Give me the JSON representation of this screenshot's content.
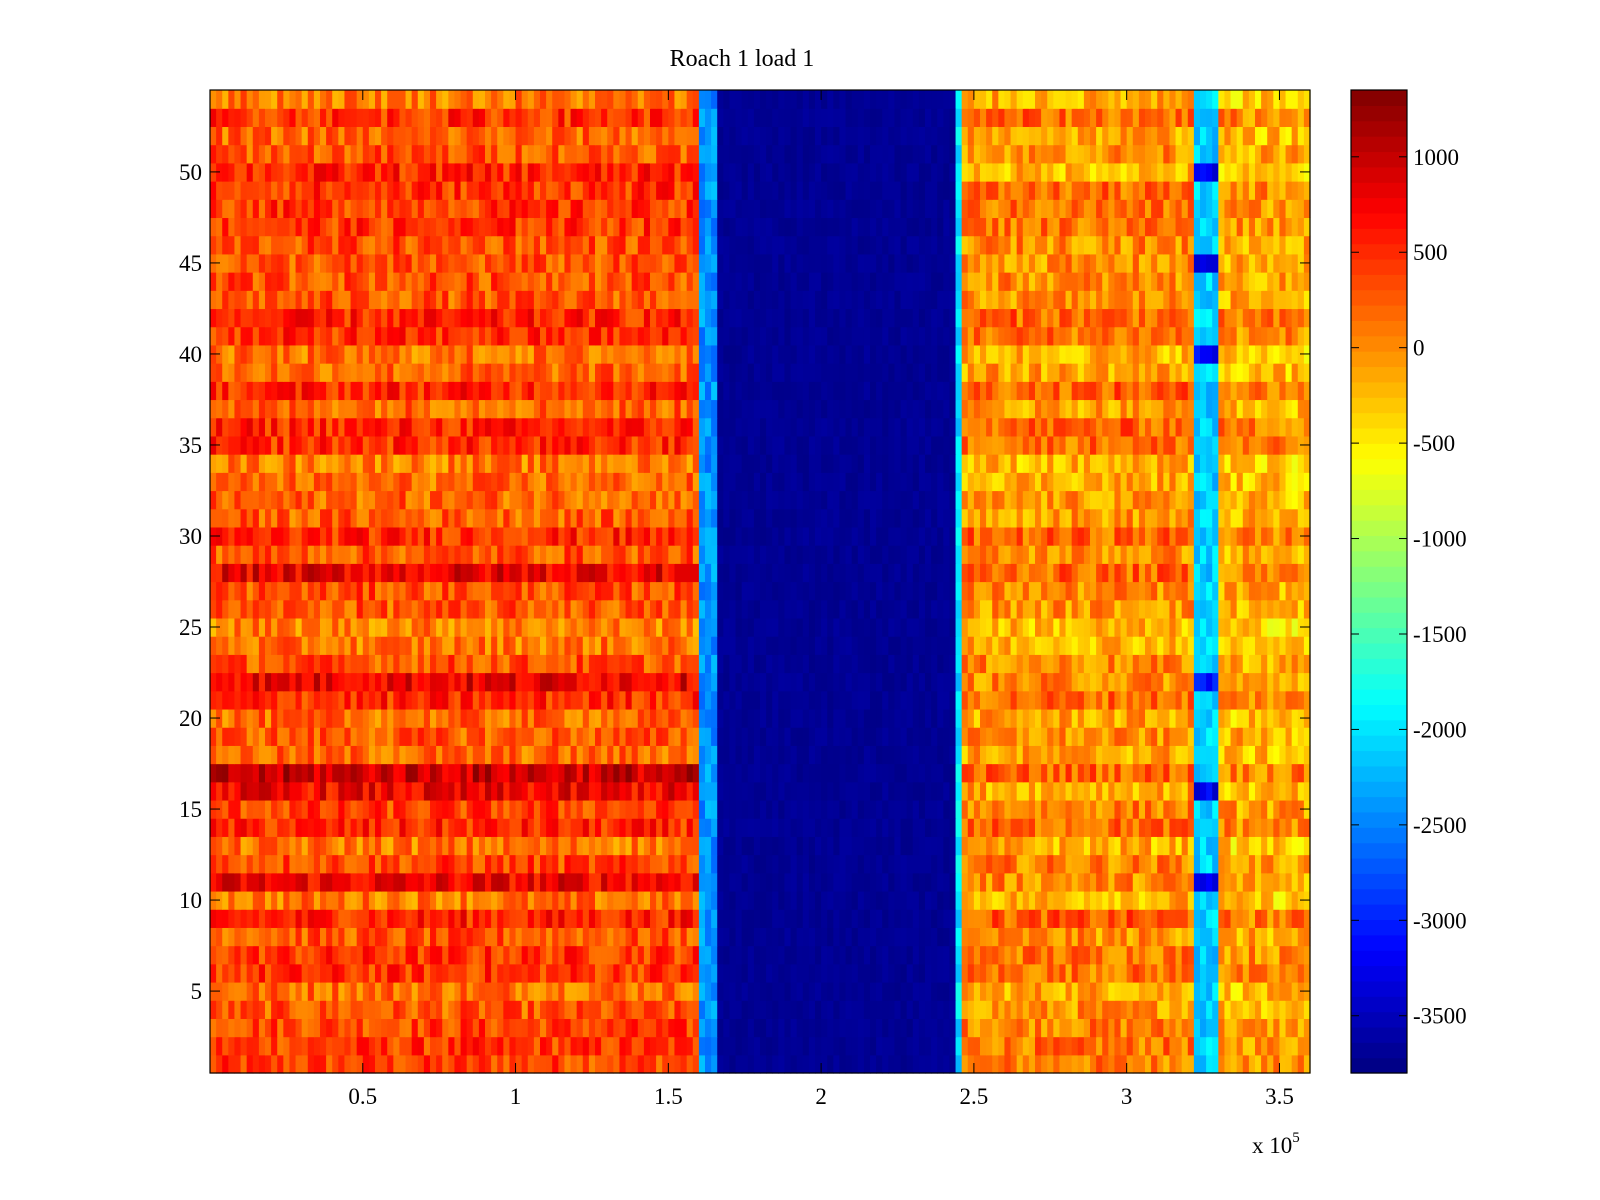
{
  "chart_data": {
    "type": "heatmap",
    "title": "Roach 1 load 1",
    "xlabel": "",
    "ylabel": "",
    "x_exponent_label": {
      "base": "x 10",
      "exponent": "5"
    },
    "xlim": [
      0,
      360000
    ],
    "ylim": [
      0.5,
      54.5
    ],
    "x_ticks": [
      {
        "value": 50000,
        "label": "0.5"
      },
      {
        "value": 100000,
        "label": "1"
      },
      {
        "value": 150000,
        "label": "1.5"
      },
      {
        "value": 200000,
        "label": "2"
      },
      {
        "value": 250000,
        "label": "2.5"
      },
      {
        "value": 300000,
        "label": "3"
      },
      {
        "value": 350000,
        "label": "3.5"
      }
    ],
    "y_ticks": [
      {
        "value": 5,
        "label": "5"
      },
      {
        "value": 10,
        "label": "10"
      },
      {
        "value": 15,
        "label": "15"
      },
      {
        "value": 20,
        "label": "20"
      },
      {
        "value": 25,
        "label": "25"
      },
      {
        "value": 30,
        "label": "30"
      },
      {
        "value": 35,
        "label": "35"
      },
      {
        "value": 40,
        "label": "40"
      },
      {
        "value": 45,
        "label": "45"
      },
      {
        "value": 50,
        "label": "50"
      }
    ],
    "colormap": "jet",
    "clim": [
      -3800,
      1350
    ],
    "colorbar_ticks": [
      {
        "value": 1000,
        "label": "1000"
      },
      {
        "value": 500,
        "label": "500"
      },
      {
        "value": 0,
        "label": "0"
      },
      {
        "value": -500,
        "label": "-500"
      },
      {
        "value": -1000,
        "label": "-1000"
      },
      {
        "value": -1500,
        "label": "-1500"
      },
      {
        "value": -2000,
        "label": "-2000"
      },
      {
        "value": -2500,
        "label": "-2500"
      },
      {
        "value": -3000,
        "label": "-3000"
      },
      {
        "value": -3500,
        "label": "-3500"
      }
    ],
    "rows": 54,
    "x_columns": 180,
    "regions": [
      {
        "x_range": [
          0,
          161000
        ],
        "typical_value": 300
      },
      {
        "x_range": [
          161000,
          166000
        ],
        "typical_value": -2400,
        "note": "transition edge"
      },
      {
        "x_range": [
          166000,
          244000
        ],
        "typical_value": -3700
      },
      {
        "x_range": [
          244000,
          246000
        ],
        "typical_value": -2000,
        "note": "transition edge"
      },
      {
        "x_range": [
          246000,
          322000
        ],
        "typical_value": 0
      },
      {
        "x_range": [
          322000,
          331000
        ],
        "typical_value": -2100,
        "note": "narrow low-value stripe"
      },
      {
        "x_range": [
          331000,
          360000
        ],
        "typical_value": -150
      }
    ],
    "row_offsets_left": [
      {
        "row": 50,
        "offset": 450
      },
      {
        "row": 22,
        "offset": 500
      },
      {
        "row": 16,
        "offset": 550
      },
      {
        "row": 17,
        "offset": 450
      },
      {
        "row": 11,
        "offset": 450
      },
      {
        "row": 28,
        "offset": 300
      }
    ],
    "stripe_dips": [
      {
        "row": 50,
        "value": -3300
      },
      {
        "row": 45,
        "value": -3300
      },
      {
        "row": 40,
        "value": -3200
      },
      {
        "row": 22,
        "value": -3000
      },
      {
        "row": 16,
        "value": -3300
      },
      {
        "row": 11,
        "value": -3300
      }
    ]
  }
}
